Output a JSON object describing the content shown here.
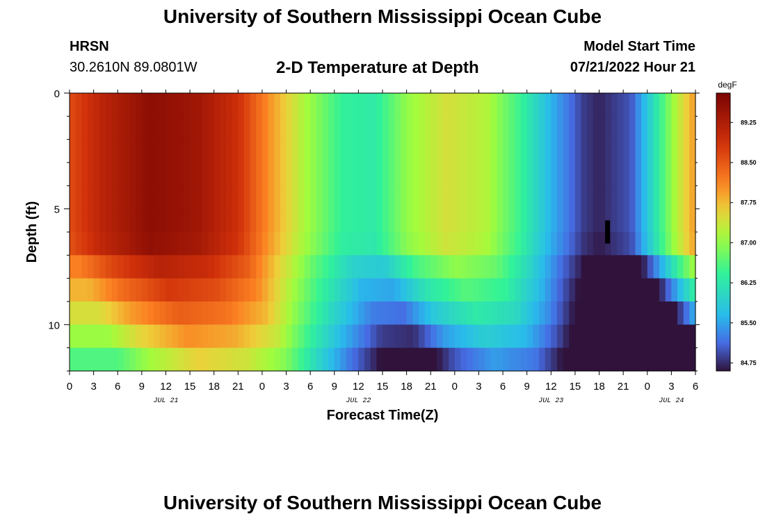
{
  "header": {
    "title": "University of Southern Mississippi Ocean Cube",
    "station": "HRSN",
    "coords": "30.2610N  89.0801W",
    "subtitle": "2-D Temperature at Depth",
    "model_start_label": "Model Start Time",
    "model_start_value": "07/21/2022 Hour 21"
  },
  "footer": {
    "title": "University of Southern Mississippi Ocean Cube"
  },
  "chart_data": {
    "type": "heatmap",
    "title": "2-D Temperature at Depth",
    "xlabel": "Forecast Time(Z)",
    "ylabel": "Depth (ft)",
    "x_start_hour": 0,
    "x_end_hour": 78,
    "x_tick_labels": [
      "0",
      "3",
      "6",
      "9",
      "12",
      "15",
      "18",
      "21",
      "0",
      "3",
      "6",
      "9",
      "12",
      "15",
      "18",
      "21",
      "0",
      "3",
      "6",
      "9",
      "12",
      "15",
      "18",
      "21",
      "0",
      "3",
      "6"
    ],
    "x_day_labels": [
      {
        "label": "JUL 21",
        "hour": 12
      },
      {
        "label": "JUL 22",
        "hour": 36
      },
      {
        "label": "JUL 23",
        "hour": 60
      },
      {
        "label": "JUL 24",
        "hour": 75
      }
    ],
    "ylim": [
      0,
      12
    ],
    "y_tick_values": [
      0,
      5,
      10
    ],
    "y_tick_labels": [
      "0",
      "5",
      "10"
    ],
    "depth_layers_ft": [
      0,
      1,
      2,
      3,
      4,
      5,
      6,
      7,
      8,
      9,
      10,
      11
    ],
    "colorbar": {
      "unit": "degF",
      "min": 84.6,
      "max": 89.8,
      "tick_values": [
        84.75,
        85.5,
        86.25,
        87.0,
        87.75,
        88.5,
        89.25
      ],
      "tick_labels": [
        "84.75",
        "85.50",
        "86.25",
        "87.00",
        "87.75",
        "88.50",
        "89.25"
      ]
    },
    "surface_temperature_keypoints": [
      {
        "hour": 0,
        "temp": 88.6
      },
      {
        "hour": 4,
        "temp": 89.1
      },
      {
        "hour": 10,
        "temp": 89.6
      },
      {
        "hour": 16,
        "temp": 89.4
      },
      {
        "hour": 21,
        "temp": 88.9
      },
      {
        "hour": 25,
        "temp": 88.0
      },
      {
        "hour": 29,
        "temp": 87.2
      },
      {
        "hour": 34,
        "temp": 86.4
      },
      {
        "hour": 38,
        "temp": 86.3
      },
      {
        "hour": 42,
        "temp": 87.0
      },
      {
        "hour": 47,
        "temp": 87.45
      },
      {
        "hour": 52,
        "temp": 87.2
      },
      {
        "hour": 56,
        "temp": 86.5
      },
      {
        "hour": 60,
        "temp": 85.6
      },
      {
        "hour": 64,
        "temp": 84.85
      },
      {
        "hour": 66,
        "temp": 84.7
      },
      {
        "hour": 70,
        "temp": 85.0
      },
      {
        "hour": 72,
        "temp": 85.8
      },
      {
        "hour": 75,
        "temp": 87.0
      },
      {
        "hour": 78,
        "temp": 88.0
      }
    ],
    "depth_offsets_degF": [
      0,
      0,
      0,
      0,
      0,
      0,
      -0.05,
      -0.45,
      -0.8,
      -1.15,
      -1.55,
      -2.0
    ],
    "marker": {
      "hour": 67,
      "depth_from": 5.5,
      "depth_to": 6.5
    }
  }
}
